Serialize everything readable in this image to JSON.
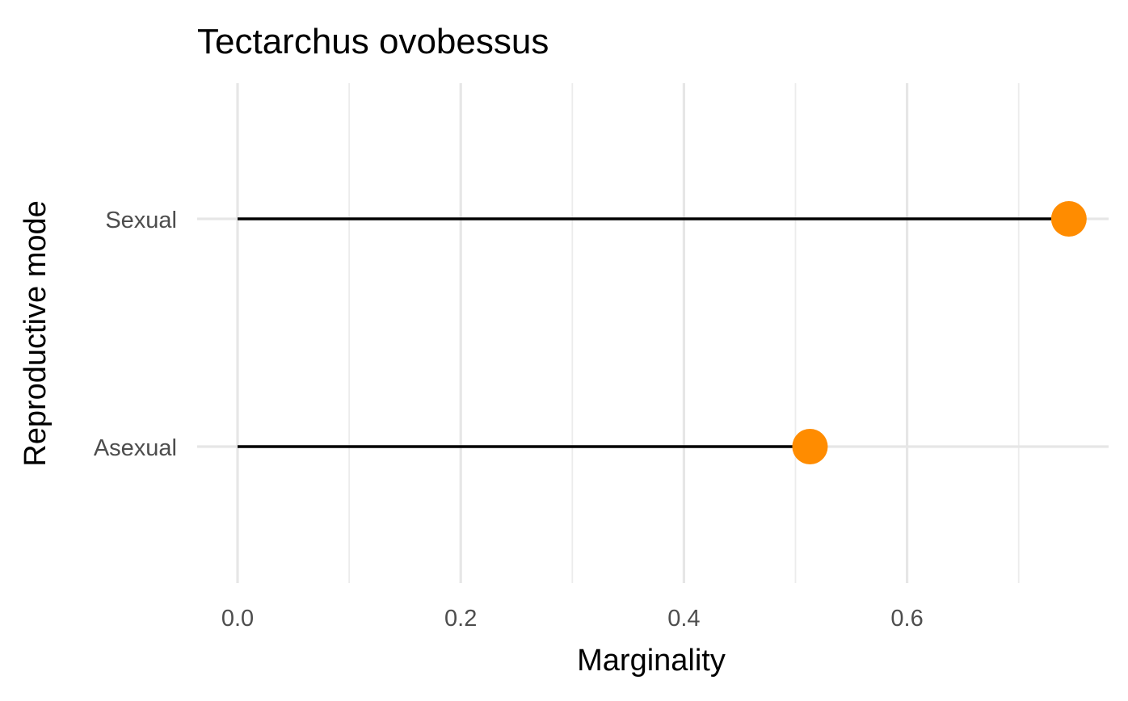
{
  "chart_data": {
    "type": "lollipop",
    "title": "Tectarchus ovobessus",
    "xlabel": "Marginality",
    "ylabel": "Reproductive mode",
    "categories": [
      "Asexual",
      "Sexual"
    ],
    "values": [
      0.513,
      0.745
    ],
    "stem_start": 0,
    "xlim": [
      0,
      0.76
    ],
    "x_ticks": [
      0.0,
      0.2,
      0.4,
      0.6
    ],
    "x_tick_labels": [
      "0.0",
      "0.2",
      "0.4",
      "0.6"
    ],
    "x_minor_ticks": [
      0.1,
      0.3,
      0.5,
      0.7
    ],
    "grid": true,
    "legend": "none",
    "point_color": "#FF8C00",
    "stem_color": "#000000"
  }
}
